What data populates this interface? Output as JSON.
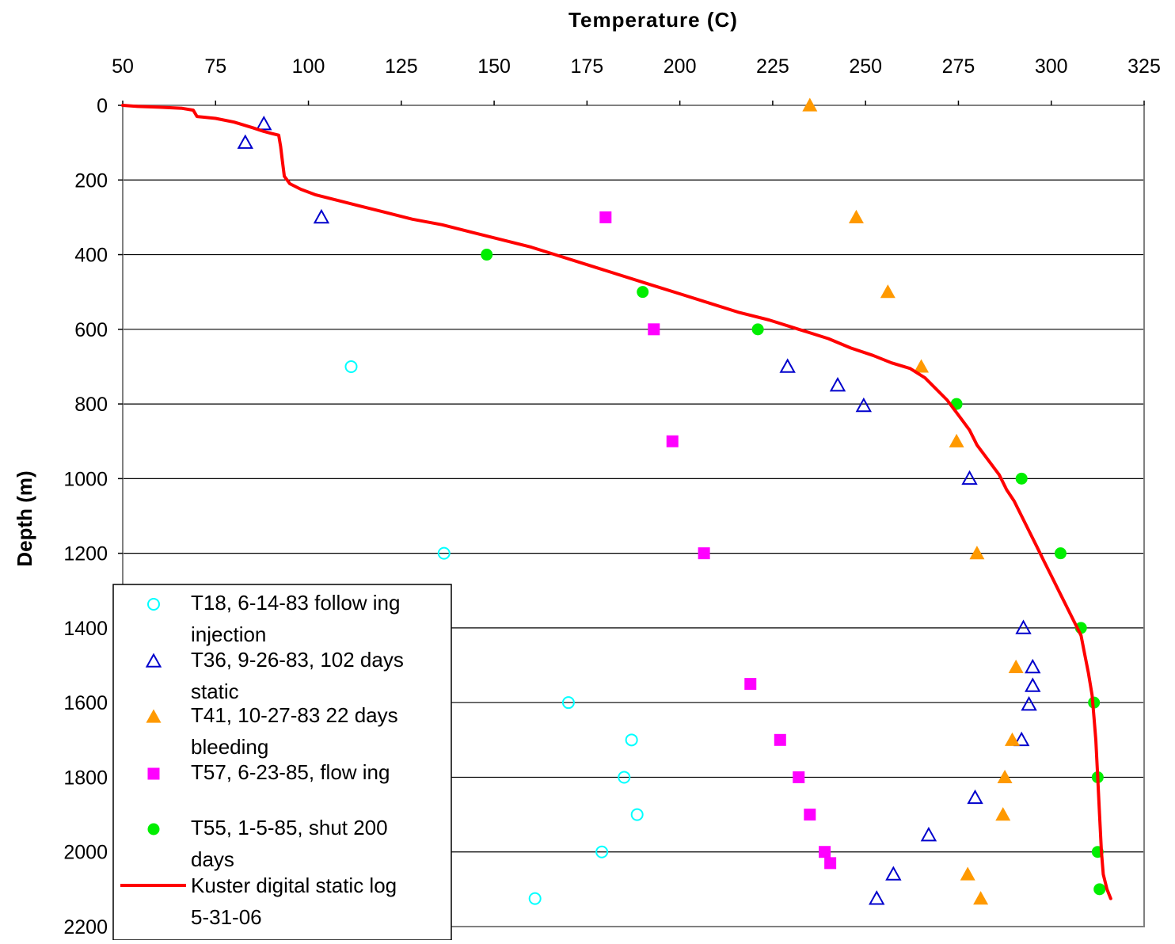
{
  "chart_data": {
    "type": "scatter",
    "title": "",
    "xlabel": "Temperature (C)",
    "ylabel": "Depth (m)",
    "xaxis_position": "top",
    "yaxis_inverted": true,
    "xlim": [
      50,
      325
    ],
    "ylim": [
      0,
      2200
    ],
    "xticks": [
      50,
      75,
      100,
      125,
      150,
      175,
      200,
      225,
      250,
      275,
      300,
      325
    ],
    "yticks": [
      0,
      200,
      400,
      600,
      800,
      1000,
      1200,
      1400,
      1600,
      1800,
      2000,
      2200
    ],
    "grid": "horizontal",
    "legend_position": "bottom-left",
    "series": [
      {
        "name": "T18, 6-14-83 following injection",
        "legend_lines": [
          "T18, 6-14-83 follow ing",
          "injection"
        ],
        "marker": "circle-open",
        "color": "#00FFFF",
        "x": [
          111.5,
          136.5,
          170,
          187,
          185,
          188.5,
          179,
          161
        ],
        "y": [
          700,
          1200,
          1600,
          1700,
          1800,
          1900,
          2000,
          2125
        ]
      },
      {
        "name": "T36, 9-26-83, 102 days static",
        "legend_lines": [
          "T36, 9-26-83, 102 days",
          "static"
        ],
        "marker": "triangle-open",
        "color": "#0000CC",
        "x": [
          88,
          83,
          103.5,
          229,
          242.5,
          249.5,
          278,
          292.5,
          295,
          295,
          294,
          292,
          279.5,
          267,
          257.5,
          253
        ],
        "y": [
          50,
          100,
          300,
          700,
          750,
          805,
          1000,
          1400,
          1505,
          1555,
          1605,
          1700,
          1855,
          1955,
          2060,
          2125
        ]
      },
      {
        "name": "T41, 10-27-83 22 days bleeding",
        "legend_lines": [
          "T41, 10-27-83 22 days",
          "bleeding"
        ],
        "marker": "triangle-filled",
        "color": "#FF9900",
        "x": [
          235,
          247.5,
          256,
          265,
          274.5,
          280,
          290.5,
          289.5,
          287.5,
          287,
          277.5,
          281
        ],
        "y": [
          0,
          300,
          500,
          700,
          900,
          1200,
          1505,
          1700,
          1800,
          1900,
          2060,
          2125
        ]
      },
      {
        "name": "T57, 6-23-85, flowing",
        "legend_lines": [
          "T57, 6-23-85, flow ing"
        ],
        "marker": "square-filled",
        "color": "#FF00FF",
        "x": [
          180,
          193,
          198,
          206.5,
          219,
          227,
          232,
          235,
          239,
          240.5
        ],
        "y": [
          300,
          600,
          900,
          1200,
          1550,
          1700,
          1800,
          1900,
          2000,
          2030
        ]
      },
      {
        "name": "T55, 1-5-85, shut 200 days",
        "legend_lines": [
          "T55, 1-5-85, shut 200",
          "days"
        ],
        "marker": "circle-filled",
        "color": "#00EE00",
        "x": [
          148,
          190,
          221,
          274.5,
          292,
          302.5,
          308,
          311.5,
          312.5,
          312.5,
          313
        ],
        "y": [
          400,
          500,
          600,
          800,
          1000,
          1200,
          1400,
          1600,
          1800,
          2000,
          2100
        ]
      },
      {
        "name": "Kuster digital static log 5-31-06",
        "legend_lines": [
          "Kuster digital static log",
          "5-31-06"
        ],
        "marker": "line",
        "color": "#FF0000",
        "x": [
          50,
          54,
          60,
          66,
          69,
          70,
          75,
          80,
          85,
          88,
          90,
          92,
          92.5,
          93,
          93.5,
          95,
          98,
          102,
          108,
          114,
          120,
          128,
          136,
          144,
          152,
          160,
          168,
          176,
          184,
          192,
          200,
          208,
          216,
          224,
          232,
          240,
          246,
          252,
          257,
          262,
          266,
          269,
          272,
          275,
          278,
          280,
          283,
          286,
          288,
          290,
          292,
          294,
          296,
          298,
          300,
          302,
          304,
          306,
          308,
          309,
          310,
          311,
          311.5,
          312,
          312.5,
          313,
          313.5,
          314,
          315,
          316
        ],
        "y": [
          0,
          3,
          5,
          8,
          13,
          30,
          35,
          45,
          60,
          70,
          75,
          80,
          110,
          150,
          190,
          210,
          225,
          240,
          255,
          270,
          285,
          305,
          320,
          340,
          360,
          380,
          405,
          430,
          455,
          480,
          505,
          530,
          555,
          575,
          600,
          625,
          650,
          670,
          690,
          705,
          730,
          760,
          790,
          830,
          870,
          910,
          950,
          990,
          1030,
          1060,
          1100,
          1140,
          1180,
          1220,
          1260,
          1300,
          1340,
          1380,
          1420,
          1470,
          1520,
          1580,
          1640,
          1700,
          1800,
          1900,
          2000,
          2060,
          2100,
          2125
        ]
      }
    ]
  }
}
